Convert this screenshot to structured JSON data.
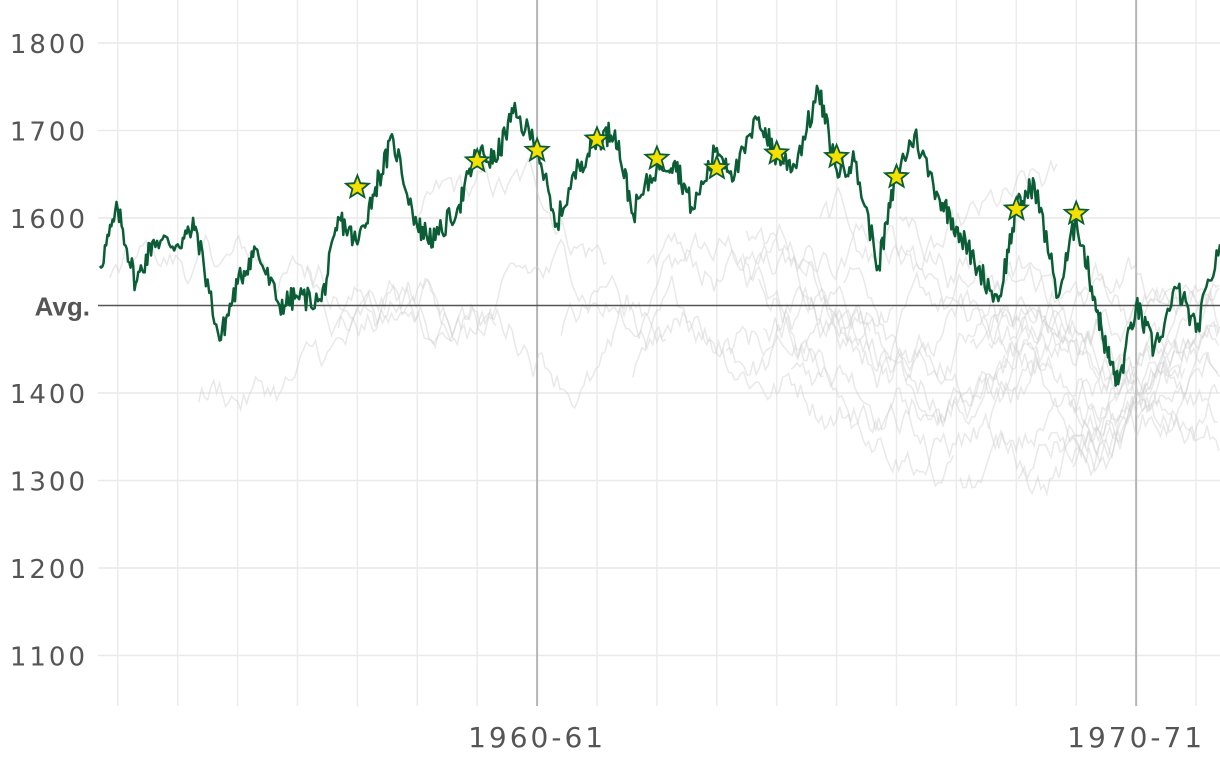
{
  "chart_data": {
    "type": "line",
    "title": "",
    "xlabel": "",
    "ylabel": "",
    "x_ticks": [
      "1960-61",
      "1970-71"
    ],
    "y_ticks": [
      {
        "value": 1800,
        "label": "1800"
      },
      {
        "value": 1700,
        "label": "1700"
      },
      {
        "value": 1600,
        "label": "1600"
      },
      {
        "value": 1500,
        "label": "Avg."
      },
      {
        "value": 1400,
        "label": "1400"
      },
      {
        "value": 1300,
        "label": "1300"
      },
      {
        "value": 1200,
        "label": "1200"
      },
      {
        "value": 1100,
        "label": "1100"
      }
    ],
    "ylim": [
      1035,
      1845
    ],
    "season_range": [
      1952.67,
      1971.4
    ],
    "average_line": 1500,
    "grid": true,
    "highlight_color": "#0b5d36",
    "background_series_color": "#cccccc",
    "star_fill": "#f5e000",
    "highlight_series": {
      "x": [
        1952.7,
        1953.0,
        1953.3,
        1953.6,
        1954.0,
        1954.3,
        1954.7,
        1955.0,
        1955.3,
        1955.7,
        1956.0,
        1956.4,
        1956.7,
        1957.0,
        1957.3,
        1957.6,
        1958.0,
        1958.3,
        1958.7,
        1959.0,
        1959.3,
        1959.6,
        1960.0,
        1960.3,
        1960.7,
        1961.0,
        1961.3,
        1961.6,
        1962.0,
        1962.3,
        1962.6,
        1963.0,
        1963.3,
        1963.7,
        1964.0,
        1964.3,
        1964.7,
        1965.0,
        1965.3,
        1965.7,
        1966.0,
        1966.3,
        1966.7,
        1967.0,
        1967.3,
        1967.7,
        1968.0,
        1968.3,
        1968.7,
        1969.0,
        1969.3,
        1969.5,
        1969.7,
        1970.0,
        1970.3,
        1970.7,
        1971.0,
        1971.4
      ],
      "y": [
        1545,
        1610,
        1525,
        1575,
        1570,
        1590,
        1460,
        1525,
        1565,
        1500,
        1510,
        1505,
        1600,
        1570,
        1635,
        1690,
        1590,
        1575,
        1615,
        1675,
        1665,
        1720,
        1685,
        1590,
        1660,
        1690,
        1700,
        1605,
        1660,
        1665,
        1610,
        1680,
        1650,
        1715,
        1670,
        1660,
        1745,
        1655,
        1665,
        1545,
        1650,
        1695,
        1625,
        1590,
        1550,
        1505,
        1610,
        1640,
        1510,
        1600,
        1510,
        1450,
        1410,
        1500,
        1450,
        1520,
        1470,
        1570
      ]
    },
    "stars": [
      {
        "x": 1957.0,
        "y": 1635
      },
      {
        "x": 1959.0,
        "y": 1665
      },
      {
        "x": 1960.0,
        "y": 1677
      },
      {
        "x": 1961.0,
        "y": 1690
      },
      {
        "x": 1962.0,
        "y": 1668
      },
      {
        "x": 1963.0,
        "y": 1657
      },
      {
        "x": 1964.0,
        "y": 1674
      },
      {
        "x": 1965.0,
        "y": 1670
      },
      {
        "x": 1966.0,
        "y": 1647
      },
      {
        "x": 1968.0,
        "y": 1610
      },
      {
        "x": 1969.0,
        "y": 1605
      }
    ],
    "background_series_count": 30
  }
}
